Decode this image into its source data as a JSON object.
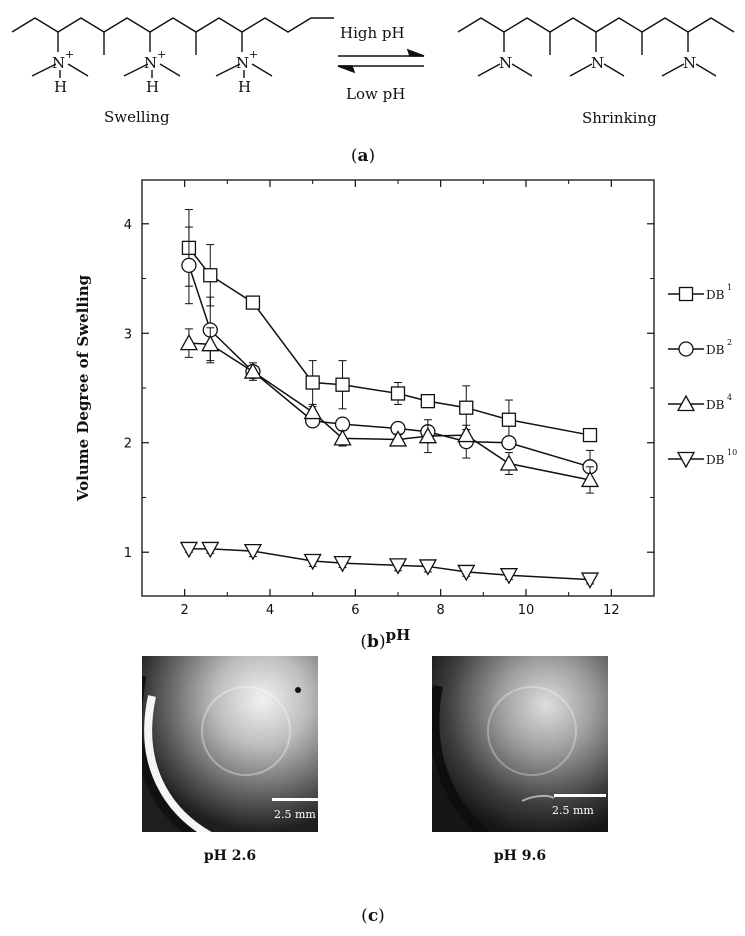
{
  "scheme": {
    "arrow_top": "High pH",
    "arrow_bottom": "Low pH",
    "left_label": "Swelling",
    "right_label": "Shrinking",
    "n_plus": "N",
    "plus": "+",
    "h": "H",
    "n": "N"
  },
  "labels": {
    "a": "a",
    "b": "b",
    "c": "c"
  },
  "chart_data": {
    "type": "line",
    "xlabel": "pH",
    "ylabel": "Volume Degree of Swelling",
    "xlim": [
      1,
      13
    ],
    "ylim": [
      0.6,
      4.4
    ],
    "xticks": [
      2,
      4,
      6,
      8,
      10,
      12
    ],
    "yticks": [
      1,
      2,
      3,
      4
    ],
    "legend_position": "right",
    "series": [
      {
        "name": "DB",
        "sup": "1",
        "marker": "square",
        "x": [
          2.1,
          2.6,
          3.6,
          5.0,
          5.7,
          7.0,
          7.7,
          8.6,
          9.6,
          11.5
        ],
        "y": [
          3.78,
          3.53,
          3.28,
          2.55,
          2.53,
          2.45,
          2.38,
          2.32,
          2.21,
          2.07
        ],
        "err": [
          0.35,
          0.28,
          0.05,
          0.2,
          0.22,
          0.1,
          0.05,
          0.2,
          0.18,
          0.05
        ]
      },
      {
        "name": "DB",
        "sup": "2",
        "marker": "circle",
        "x": [
          2.1,
          2.6,
          3.6,
          5.0,
          5.7,
          7.0,
          7.7,
          8.6,
          9.6,
          11.5
        ],
        "y": [
          3.62,
          3.03,
          2.65,
          2.2,
          2.17,
          2.13,
          2.1,
          2.01,
          2.0,
          1.78
        ],
        "err": [
          0.35,
          0.3,
          0.05,
          0.05,
          0.05,
          0.05,
          0.05,
          0.15,
          0.05,
          0.15
        ]
      },
      {
        "name": "DB",
        "sup": "4",
        "marker": "triangle-up",
        "x": [
          2.1,
          2.6,
          3.6,
          5.0,
          5.7,
          7.0,
          7.7,
          8.6,
          9.6,
          11.5
        ],
        "y": [
          2.91,
          2.9,
          2.65,
          2.28,
          2.04,
          2.03,
          2.06,
          2.07,
          1.81,
          1.66
        ],
        "err": [
          0.13,
          0.15,
          0.08,
          0.05,
          0.07,
          0.05,
          0.15,
          0.05,
          0.1,
          0.12
        ]
      },
      {
        "name": "DB",
        "sup": "10",
        "marker": "triangle-down",
        "x": [
          2.1,
          2.6,
          3.6,
          5.0,
          5.7,
          7.0,
          7.7,
          8.6,
          9.6,
          11.5
        ],
        "y": [
          1.03,
          1.03,
          1.01,
          0.92,
          0.9,
          0.88,
          0.87,
          0.82,
          0.79,
          0.75
        ],
        "err": [
          0.03,
          0.04,
          0.05,
          0.05,
          0.04,
          0.05,
          0.05,
          0.04,
          0.04,
          0.04
        ]
      }
    ]
  },
  "photos": [
    {
      "caption": "pH 2.6",
      "scale": "2.5 mm"
    },
    {
      "caption": "pH 9.6",
      "scale": "2.5 mm"
    }
  ]
}
